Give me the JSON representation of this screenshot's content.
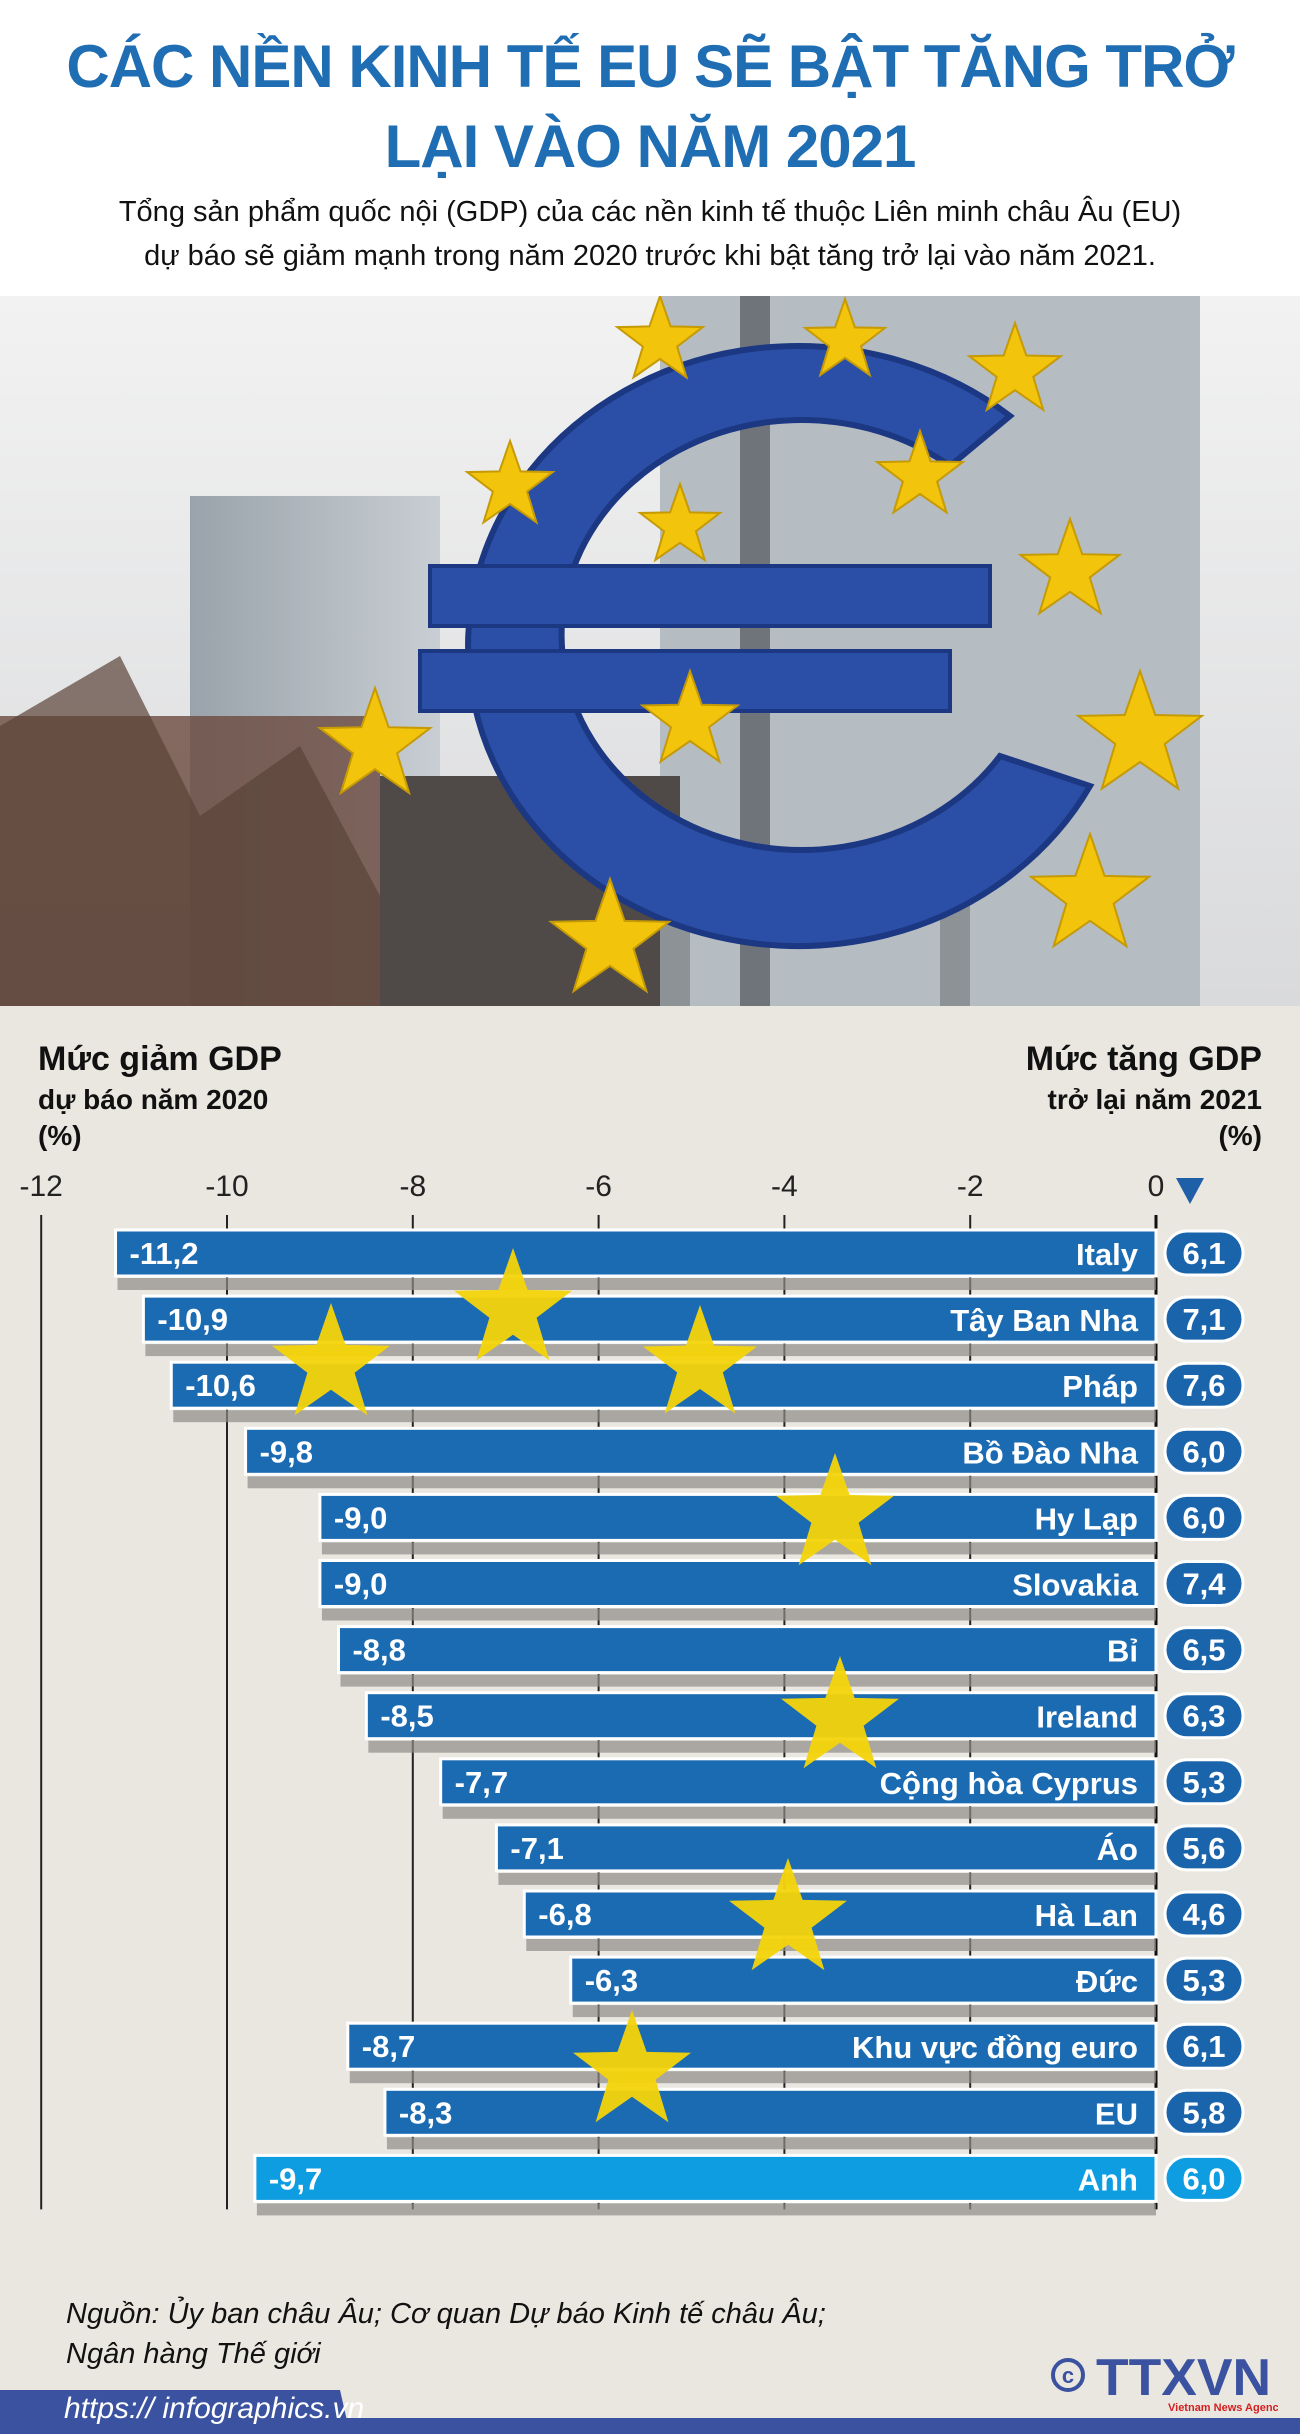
{
  "header": {
    "title_line1": "CÁC NỀN KINH TẾ EU SẼ BẬT TĂNG TRỞ",
    "title_line2": "LẠI VÀO NĂM 2021",
    "subtitle_line1": "Tổng sản phẩm quốc nội (GDP) của các nền kinh tế thuộc Liên minh châu Âu (EU)",
    "subtitle_line2": "dự báo sẽ giảm mạnh trong năm 2020 trước khi bật tăng trở lại vào năm 2021."
  },
  "chart_data": {
    "type": "bar",
    "orientation": "horizontal",
    "left_label": {
      "line1": "Mức giảm GDP",
      "line2": "dự báo năm 2020",
      "unit": "(%)"
    },
    "right_label": {
      "line1": "Mức tăng GDP",
      "line2": "trở lại năm 2021",
      "unit": "(%)"
    },
    "xlim": [
      -12,
      0
    ],
    "ticks": [
      "-12",
      "-10",
      "-8",
      "-6",
      "-4",
      "-2",
      "0"
    ],
    "grid": true,
    "categories": [
      "Italy",
      "Tây Ban Nha",
      "Pháp",
      "Bồ Đào Nha",
      "Hy Lạp",
      "Slovakia",
      "Bỉ",
      "Ireland",
      "Cộng hòa Cyprus",
      "Áo",
      "Hà Lan",
      "Đức",
      "Khu vực đồng euro",
      "EU",
      "Anh"
    ],
    "series": [
      {
        "values": [
          -11.2,
          -10.9,
          -10.6,
          -9.8,
          -9.0,
          -9.0,
          -8.8,
          -8.5,
          -7.7,
          -7.1,
          -6.8,
          -6.3,
          -8.7,
          -8.3,
          -9.7
        ],
        "labels": [
          "-11,2",
          "-10,9",
          "-10,6",
          "-9,8",
          "-9,0",
          "-9,0",
          "-8,8",
          "-8,5",
          "-7,7",
          "-7,1",
          "-6,8",
          "-6,3",
          "-8,7",
          "-8,3",
          "-9,7"
        ]
      },
      {
        "values": [
          6.1,
          7.1,
          7.6,
          6.0,
          6.0,
          7.4,
          6.5,
          6.3,
          5.3,
          5.6,
          4.6,
          5.3,
          6.1,
          5.8,
          6.0
        ],
        "labels": [
          "6,1",
          "7,1",
          "7,6",
          "6,0",
          "6,0",
          "7,4",
          "6,5",
          "6,3",
          "5,3",
          "5,6",
          "4,6",
          "5,3",
          "6,1",
          "5,8",
          "6,0"
        ]
      }
    ],
    "highlight_category": "Anh",
    "colors": {
      "bar": "#1b6bb3",
      "highlight_bar": "#0e9de0",
      "pill": "#1a64ab",
      "star": "#f4d40a"
    }
  },
  "footer": {
    "source_line1": "Nguồn: Ủy ban châu Âu; Cơ quan Dự báo Kinh tế châu Âu;",
    "source_line2": "Ngân hàng Thế giới",
    "url": "https:// infographics.vn",
    "logo": "© TTXVN Vietnam News Agency"
  },
  "photo": {
    "icon": "euro-sculpture-photo"
  }
}
